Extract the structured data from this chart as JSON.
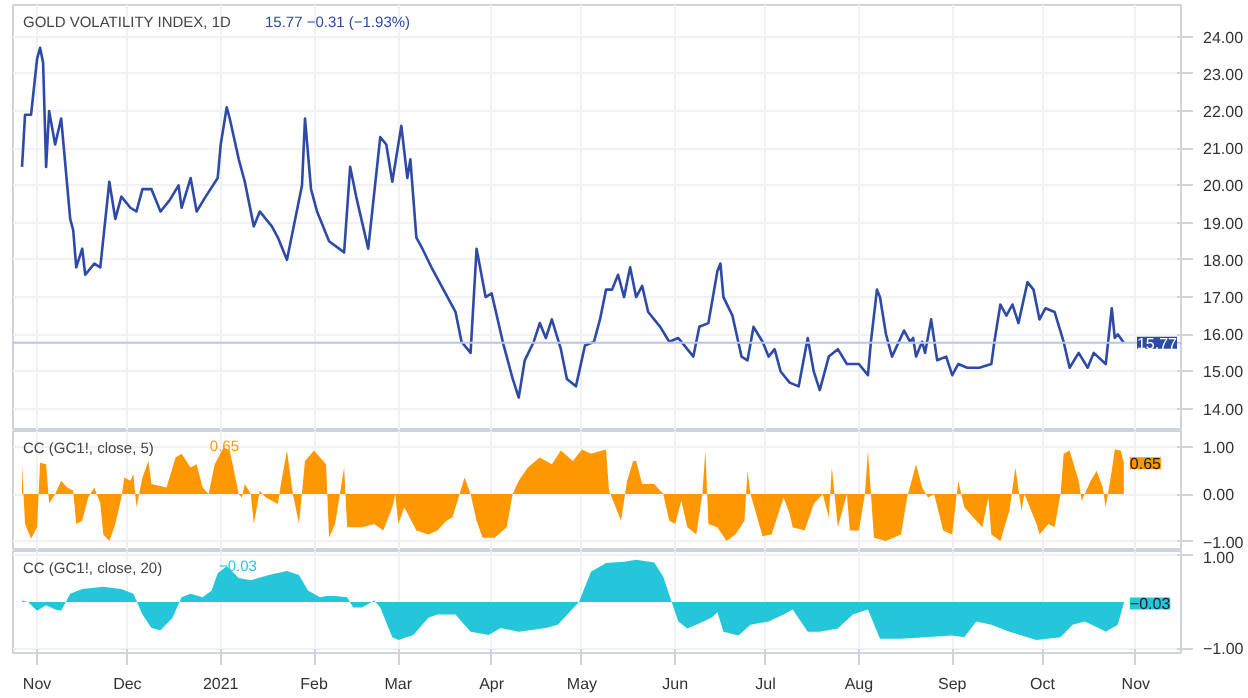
{
  "chart_data": [
    {
      "type": "line",
      "title": "GOLD VOLATILITY INDEX, 1D",
      "subtitle": "15.77 −0.31 (−1.93%)",
      "grid": true,
      "tick_labels": "y",
      "xlim": [
        "2020-10-24",
        "2021-11-16"
      ],
      "ylim": [
        13.4,
        24.85
      ],
      "xticks": [
        {
          "value": "2020-11-01",
          "label": null
        },
        {
          "value": "2020-12-01",
          "label": null
        },
        {
          "value": "2021-01-01",
          "label": null
        },
        {
          "value": "2021-02-01",
          "label": null
        },
        {
          "value": "2021-03-01",
          "label": null
        },
        {
          "value": "2021-04-01",
          "label": null
        },
        {
          "value": "2021-05-01",
          "label": null
        },
        {
          "value": "2021-06-01",
          "label": null
        },
        {
          "value": "2021-07-01",
          "label": null
        },
        {
          "value": "2021-08-01",
          "label": null
        },
        {
          "value": "2021-09-01",
          "label": null
        },
        {
          "value": "2021-10-01",
          "label": null
        },
        {
          "value": "2021-11-01",
          "label": null
        }
      ],
      "yticks": [
        {
          "value": 14,
          "label": "14.00"
        },
        {
          "value": 15,
          "label": "15.00"
        },
        {
          "value": 16,
          "label": "16.00"
        },
        {
          "value": 17,
          "label": "17.00"
        },
        {
          "value": 18,
          "label": "18.00"
        },
        {
          "value": 19,
          "label": "19.00"
        },
        {
          "value": 20,
          "label": "20.00"
        },
        {
          "value": 21,
          "label": "21.00"
        },
        {
          "value": 22,
          "label": "22.00"
        },
        {
          "value": 23,
          "label": "23.00"
        },
        {
          "value": 24,
          "label": "24.00"
        }
      ],
      "ref_lines": [
        {
          "axis": "y",
          "value": 15.77,
          "label": "15.77",
          "color": "#b8c4f0"
        }
      ],
      "series": [
        {
          "color": "#2f4aa6",
          "x": [
            "2020-10-27",
            "2020-10-28",
            "2020-10-30",
            "2020-11-01",
            "2020-11-02",
            "2020-11-03",
            "2020-11-04",
            "2020-11-05",
            "2020-11-07",
            "2020-11-09",
            "2020-11-12",
            "2020-11-13",
            "2020-11-14",
            "2020-11-16",
            "2020-11-17",
            "2020-11-20",
            "2020-11-22",
            "2020-11-25",
            "2020-11-27",
            "2020-11-29",
            "2020-12-02",
            "2020-12-04",
            "2020-12-06",
            "2020-12-09",
            "2020-12-12",
            "2020-12-15",
            "2020-12-18",
            "2020-12-19",
            "2020-12-22",
            "2020-12-24",
            "2020-12-27",
            "2020-12-31",
            "2021-01-01",
            "2021-01-03",
            "2021-01-04",
            "2021-01-07",
            "2021-01-09",
            "2021-01-12",
            "2021-01-14",
            "2021-01-18",
            "2021-01-20",
            "2021-01-23",
            "2021-01-28",
            "2021-01-29",
            "2021-01-31",
            "2021-02-02",
            "2021-02-06",
            "2021-02-11",
            "2021-02-13",
            "2021-02-15",
            "2021-02-17",
            "2021-02-19",
            "2021-02-23",
            "2021-02-25",
            "2021-02-27",
            "2021-03-02",
            "2021-03-04",
            "2021-03-05",
            "2021-03-07",
            "2021-03-09",
            "2021-03-12",
            "2021-03-16",
            "2021-03-20",
            "2021-03-22",
            "2021-03-25",
            "2021-03-27",
            "2021-03-30",
            "2021-04-01",
            "2021-04-05",
            "2021-04-08",
            "2021-04-10",
            "2021-04-12",
            "2021-04-15",
            "2021-04-17",
            "2021-04-19",
            "2021-04-21",
            "2021-04-24",
            "2021-04-26",
            "2021-04-29",
            "2021-05-02",
            "2021-05-05",
            "2021-05-07",
            "2021-05-09",
            "2021-05-11",
            "2021-05-13",
            "2021-05-15",
            "2021-05-17",
            "2021-05-19",
            "2021-05-21",
            "2021-05-23",
            "2021-05-27",
            "2021-05-30",
            "2021-06-02",
            "2021-06-04",
            "2021-06-07",
            "2021-06-09",
            "2021-06-12",
            "2021-06-15",
            "2021-06-16",
            "2021-06-17",
            "2021-06-20",
            "2021-06-23",
            "2021-06-25",
            "2021-06-27",
            "2021-06-30",
            "2021-07-02",
            "2021-07-04",
            "2021-07-06",
            "2021-07-09",
            "2021-07-12",
            "2021-07-15",
            "2021-07-17",
            "2021-07-19",
            "2021-07-22",
            "2021-07-25",
            "2021-07-28",
            "2021-08-01",
            "2021-08-04",
            "2021-08-05",
            "2021-08-07",
            "2021-08-08",
            "2021-08-10",
            "2021-08-12",
            "2021-08-16",
            "2021-08-18",
            "2021-08-19",
            "2021-08-20",
            "2021-08-22",
            "2021-08-23",
            "2021-08-25",
            "2021-08-27",
            "2021-08-30",
            "2021-09-01",
            "2021-09-03",
            "2021-09-06",
            "2021-09-10",
            "2021-09-14",
            "2021-09-15",
            "2021-09-17",
            "2021-09-19",
            "2021-09-21",
            "2021-09-23",
            "2021-09-26",
            "2021-09-28",
            "2021-09-30",
            "2021-10-02",
            "2021-10-05",
            "2021-10-08",
            "2021-10-10",
            "2021-10-13",
            "2021-10-16",
            "2021-10-18",
            "2021-10-22",
            "2021-10-24",
            "2021-10-25",
            "2021-10-26",
            "2021-10-28"
          ],
          "values": [
            20.5,
            21.9,
            21.9,
            23.4,
            23.7,
            23.3,
            20.5,
            22.0,
            21.1,
            21.8,
            19.1,
            18.8,
            17.8,
            18.3,
            17.6,
            17.9,
            17.8,
            20.1,
            19.1,
            19.7,
            19.4,
            19.3,
            19.9,
            19.9,
            19.3,
            19.6,
            20.0,
            19.4,
            20.2,
            19.3,
            19.7,
            20.2,
            21.1,
            22.1,
            21.8,
            20.7,
            20.1,
            18.9,
            19.3,
            18.9,
            18.6,
            18.0,
            20.0,
            21.8,
            19.9,
            19.3,
            18.5,
            18.2,
            20.5,
            19.7,
            19.0,
            18.3,
            21.3,
            21.1,
            20.1,
            21.6,
            20.2,
            20.7,
            18.6,
            18.3,
            17.8,
            17.2,
            16.6,
            15.8,
            15.5,
            18.3,
            17.0,
            17.1,
            15.7,
            14.8,
            14.3,
            15.3,
            15.8,
            16.3,
            15.9,
            16.4,
            15.6,
            14.8,
            14.6,
            15.7,
            15.8,
            16.4,
            17.2,
            17.2,
            17.6,
            17.0,
            17.8,
            17.0,
            17.3,
            16.6,
            16.2,
            15.8,
            15.9,
            15.7,
            15.4,
            16.2,
            16.3,
            17.7,
            17.9,
            17.0,
            16.5,
            15.4,
            15.3,
            16.2,
            15.8,
            15.4,
            15.6,
            15.0,
            14.7,
            14.6,
            15.9,
            15.0,
            14.5,
            15.4,
            15.6,
            15.2,
            15.2,
            14.9,
            15.8,
            17.2,
            17.0,
            16.0,
            15.4,
            16.1,
            15.8,
            15.9,
            15.4,
            15.8,
            15.5,
            16.4,
            15.3,
            15.4,
            14.9,
            15.2,
            15.1,
            15.1,
            15.2,
            15.8,
            16.8,
            16.5,
            16.8,
            16.3,
            17.4,
            17.2,
            16.4,
            16.7,
            16.6,
            15.8,
            15.1,
            15.5,
            15.1,
            15.5,
            15.2,
            16.7,
            15.9,
            16.0,
            15.77
          ]
        }
      ]
    },
    {
      "type": "area",
      "title": "CC (GC1!, close, 5)",
      "subtitle": "0.65",
      "grid": true,
      "tick_labels": "y",
      "xlim": [
        "2020-10-24",
        "2021-11-16"
      ],
      "ylim": [
        -1.2,
        1.33
      ],
      "xticks": [
        {
          "value": "2020-11-01",
          "label": null
        },
        {
          "value": "2020-12-01",
          "label": null
        },
        {
          "value": "2021-01-01",
          "label": null
        },
        {
          "value": "2021-02-01",
          "label": null
        },
        {
          "value": "2021-03-01",
          "label": null
        },
        {
          "value": "2021-04-01",
          "label": null
        },
        {
          "value": "2021-05-01",
          "label": null
        },
        {
          "value": "2021-06-01",
          "label": null
        },
        {
          "value": "2021-07-01",
          "label": null
        },
        {
          "value": "2021-08-01",
          "label": null
        },
        {
          "value": "2021-09-01",
          "label": null
        },
        {
          "value": "2021-10-01",
          "label": null
        },
        {
          "value": "2021-11-01",
          "label": null
        }
      ],
      "yticks": [
        {
          "value": -1,
          "label": "−1.00"
        },
        {
          "value": 0,
          "label": "0.00"
        },
        {
          "value": 1,
          "label": "1.00"
        }
      ],
      "annotations": [
        {
          "text": "0.65",
          "x": "2021-10-28",
          "y": 0.65
        }
      ],
      "series": [
        {
          "color": "#ff9800",
          "x": [
            "2020-10-27",
            "2020-10-28",
            "2020-10-30",
            "2020-11-01",
            "2020-11-02",
            "2020-11-04",
            "2020-11-05",
            "2020-11-07",
            "2020-11-09",
            "2020-11-11",
            "2020-11-13",
            "2020-11-14",
            "2020-11-16",
            "2020-11-18",
            "2020-11-20",
            "2020-11-22",
            "2020-11-23",
            "2020-11-25",
            "2020-11-27",
            "2020-11-29",
            "2020-11-30",
            "2020-12-02",
            "2020-12-03",
            "2020-12-04",
            "2020-12-06",
            "2020-12-08",
            "2020-12-09",
            "2020-12-14",
            "2020-12-17",
            "2020-12-19",
            "2020-12-22",
            "2020-12-24",
            "2020-12-26",
            "2020-12-28",
            "2020-12-30",
            "2021-01-02",
            "2021-01-04",
            "2021-01-07",
            "2021-01-08",
            "2021-01-09",
            "2021-01-11",
            "2021-01-12",
            "2021-01-14",
            "2021-01-16",
            "2021-01-20",
            "2021-01-21",
            "2021-01-23",
            "2021-01-25",
            "2021-01-27",
            "2021-01-29",
            "2021-02-01",
            "2021-02-05",
            "2021-02-06",
            "2021-02-08",
            "2021-02-11",
            "2021-02-12",
            "2021-02-14",
            "2021-02-17",
            "2021-02-21",
            "2021-02-24",
            "2021-02-27",
            "2021-02-28",
            "2021-03-01",
            "2021-03-03",
            "2021-03-07",
            "2021-03-11",
            "2021-03-14",
            "2021-03-17",
            "2021-03-19",
            "2021-03-21",
            "2021-03-23",
            "2021-03-25",
            "2021-03-27",
            "2021-03-29",
            "2021-04-02",
            "2021-04-06",
            "2021-04-08",
            "2021-04-10",
            "2021-04-13",
            "2021-04-17",
            "2021-04-21",
            "2021-04-24",
            "2021-04-28",
            "2021-05-01",
            "2021-05-04",
            "2021-05-09",
            "2021-05-10",
            "2021-05-14",
            "2021-05-16",
            "2021-05-18",
            "2021-05-19",
            "2021-05-21",
            "2021-05-25",
            "2021-05-28",
            "2021-05-30",
            "2021-06-01",
            "2021-06-03",
            "2021-06-05",
            "2021-06-08",
            "2021-06-10",
            "2021-06-11",
            "2021-06-12",
            "2021-06-15",
            "2021-06-18",
            "2021-06-21",
            "2021-06-24",
            "2021-06-25",
            "2021-06-26",
            "2021-06-30",
            "2021-07-03",
            "2021-07-07",
            "2021-07-09",
            "2021-07-10",
            "2021-07-14",
            "2021-07-17",
            "2021-07-20",
            "2021-07-22",
            "2021-07-23",
            "2021-07-25",
            "2021-07-28",
            "2021-07-29",
            "2021-08-01",
            "2021-08-03",
            "2021-08-04",
            "2021-08-06",
            "2021-08-10",
            "2021-08-15",
            "2021-08-17",
            "2021-08-20",
            "2021-08-22",
            "2021-08-24",
            "2021-08-26",
            "2021-08-29",
            "2021-09-01",
            "2021-09-03",
            "2021-09-05",
            "2021-09-09",
            "2021-09-11",
            "2021-09-13",
            "2021-09-14",
            "2021-09-17",
            "2021-09-20",
            "2021-09-22",
            "2021-09-24",
            "2021-09-25",
            "2021-09-29",
            "2021-09-30",
            "2021-10-03",
            "2021-10-05",
            "2021-10-07",
            "2021-10-08",
            "2021-10-10",
            "2021-10-13",
            "2021-10-14",
            "2021-10-17",
            "2021-10-19",
            "2021-10-21",
            "2021-10-22",
            "2021-10-24",
            "2021-10-25",
            "2021-10-27",
            "2021-10-28"
          ],
          "values": [
            0.63,
            -0.63,
            -0.94,
            -0.7,
            0.66,
            0.63,
            -0.2,
            0,
            0.28,
            0.14,
            0.07,
            -0.63,
            -0.56,
            -0.07,
            0.14,
            -0.2,
            -0.85,
            -0.99,
            -0.63,
            -0.07,
            0.35,
            0.28,
            0.42,
            -0.28,
            0.35,
            0.7,
            0.21,
            0.14,
            0.77,
            0.85,
            0.56,
            0.63,
            0.14,
            0,
            0.63,
            0.99,
            0.92,
            0,
            -0.07,
            0.21,
            0,
            -0.63,
            0.07,
            -0.07,
            -0.21,
            0.21,
            0.92,
            0,
            -0.63,
            0.7,
            0.92,
            0.63,
            -0.92,
            -0.63,
            0.56,
            -0.7,
            -0.7,
            -0.7,
            -0.63,
            -0.77,
            -0.28,
            0,
            -0.63,
            -0.28,
            -0.77,
            -0.85,
            -0.77,
            -0.56,
            -0.49,
            -0.07,
            0.35,
            0,
            -0.56,
            -0.92,
            -0.92,
            -0.7,
            0,
            0.28,
            0.56,
            0.77,
            0.63,
            0.92,
            0.7,
            0.94,
            0.85,
            0.94,
            0.07,
            -0.56,
            0.28,
            0.7,
            0.7,
            0.21,
            0.21,
            0,
            -0.56,
            -0.63,
            -0.14,
            -0.7,
            -0.85,
            0,
            0.92,
            -0.63,
            -0.7,
            -0.99,
            -0.85,
            -0.56,
            0.49,
            0,
            -0.89,
            -0.85,
            -0.07,
            -0.42,
            -0.7,
            -0.77,
            -0.21,
            0,
            -0.49,
            0.56,
            -0.7,
            0,
            -0.77,
            -0.77,
            0,
            0.92,
            -0.92,
            -0.99,
            -0.85,
            -0.07,
            0.63,
            0.14,
            -0.07,
            0,
            -0.77,
            -0.85,
            0.28,
            -0.28,
            -0.56,
            -0.7,
            -0.07,
            -0.85,
            -0.99,
            -0.35,
            0.56,
            -0.35,
            0,
            -0.63,
            -0.85,
            -0.63,
            -0.7,
            0,
            0.85,
            0.92,
            0.28,
            -0.14,
            0.28,
            0.49,
            0.14,
            -0.28,
            0.49,
            0.94,
            0.92,
            0.65
          ]
        }
      ]
    },
    {
      "type": "area",
      "title": "CC (GC1!, close, 20)",
      "subtitle": "−0.03",
      "grid": true,
      "xlim": [
        "2020-10-24",
        "2021-11-16"
      ],
      "ylim": [
        -1.1,
        1.1
      ],
      "xticks": [
        {
          "value": "2020-11-01",
          "label": "Nov"
        },
        {
          "value": "2020-12-01",
          "label": "Dec"
        },
        {
          "value": "2021-01-01",
          "label": "2021"
        },
        {
          "value": "2021-02-01",
          "label": "Feb"
        },
        {
          "value": "2021-03-01",
          "label": "Mar"
        },
        {
          "value": "2021-04-01",
          "label": "Apr"
        },
        {
          "value": "2021-05-01",
          "label": "May"
        },
        {
          "value": "2021-06-01",
          "label": "Jun"
        },
        {
          "value": "2021-07-01",
          "label": "Jul"
        },
        {
          "value": "2021-08-01",
          "label": "Aug"
        },
        {
          "value": "2021-09-01",
          "label": "Sep"
        },
        {
          "value": "2021-10-01",
          "label": "Oct"
        },
        {
          "value": "2021-11-01",
          "label": "Nov"
        }
      ],
      "yticks": [
        {
          "value": -1,
          "label": "−1.00"
        },
        {
          "value": 1,
          "label": "1.00"
        }
      ],
      "annotations": [
        {
          "text": "−0.03",
          "x": "2021-10-28",
          "y": -0.03
        }
      ],
      "series": [
        {
          "color": "#26c6da",
          "x": [
            "2020-10-27",
            "2020-10-29",
            "2020-11-01",
            "2020-11-04",
            "2020-11-07",
            "2020-11-09",
            "2020-11-12",
            "2020-11-16",
            "2020-11-23",
            "2020-11-29",
            "2020-12-03",
            "2020-12-06",
            "2020-12-09",
            "2020-12-12",
            "2020-12-16",
            "2020-12-19",
            "2020-12-22",
            "2020-12-26",
            "2020-12-29",
            "2020-12-31",
            "2021-01-03",
            "2021-01-07",
            "2021-01-11",
            "2021-01-17",
            "2021-01-23",
            "2021-01-27",
            "2021-01-30",
            "2021-02-03",
            "2021-02-05",
            "2021-02-08",
            "2021-02-12",
            "2021-02-14",
            "2021-02-17",
            "2021-02-21",
            "2021-02-23",
            "2021-02-27",
            "2021-03-01",
            "2021-03-06",
            "2021-03-11",
            "2021-03-14",
            "2021-03-20",
            "2021-03-22",
            "2021-03-25",
            "2021-03-31",
            "2021-04-04",
            "2021-04-10",
            "2021-04-19",
            "2021-04-23",
            "2021-04-30",
            "2021-05-04",
            "2021-05-09",
            "2021-05-15",
            "2021-05-19",
            "2021-05-25",
            "2021-05-28",
            "2021-05-31",
            "2021-06-02",
            "2021-06-05",
            "2021-06-08",
            "2021-06-13",
            "2021-06-15",
            "2021-06-17",
            "2021-06-22",
            "2021-06-26",
            "2021-07-02",
            "2021-07-07",
            "2021-07-10",
            "2021-07-15",
            "2021-07-19",
            "2021-07-25",
            "2021-07-30",
            "2021-08-04",
            "2021-08-08",
            "2021-08-15",
            "2021-08-23",
            "2021-09-01",
            "2021-09-05",
            "2021-09-09",
            "2021-09-14",
            "2021-09-20",
            "2021-09-29",
            "2021-10-07",
            "2021-10-11",
            "2021-10-15",
            "2021-10-20",
            "2021-10-22",
            "2021-10-26",
            "2021-10-28"
          ],
          "values": [
            0.03,
            0,
            -0.19,
            -0.07,
            -0.16,
            -0.19,
            0.18,
            0.28,
            0.33,
            0.28,
            0.18,
            -0.27,
            -0.56,
            -0.61,
            -0.34,
            0.1,
            0.18,
            0.1,
            0.25,
            0.62,
            0.77,
            0.52,
            0.47,
            0.58,
            0.67,
            0.58,
            0.25,
            0.1,
            0.13,
            0.13,
            0.1,
            -0.12,
            -0.12,
            0.03,
            -0.12,
            -0.76,
            -0.82,
            -0.71,
            -0.34,
            -0.27,
            -0.27,
            -0.42,
            -0.64,
            -0.71,
            -0.56,
            -0.64,
            -0.56,
            -0.49,
            0,
            0.65,
            0.84,
            0.87,
            0.91,
            0.85,
            0.55,
            -0.04,
            -0.42,
            -0.57,
            -0.49,
            -0.34,
            -0.22,
            -0.64,
            -0.72,
            -0.49,
            -0.42,
            -0.27,
            -0.16,
            -0.64,
            -0.64,
            -0.57,
            -0.27,
            -0.16,
            -0.79,
            -0.79,
            -0.76,
            -0.72,
            -0.76,
            -0.42,
            -0.49,
            -0.64,
            -0.82,
            -0.76,
            -0.49,
            -0.42,
            -0.57,
            -0.64,
            -0.49,
            -0.03
          ]
        }
      ]
    }
  ]
}
